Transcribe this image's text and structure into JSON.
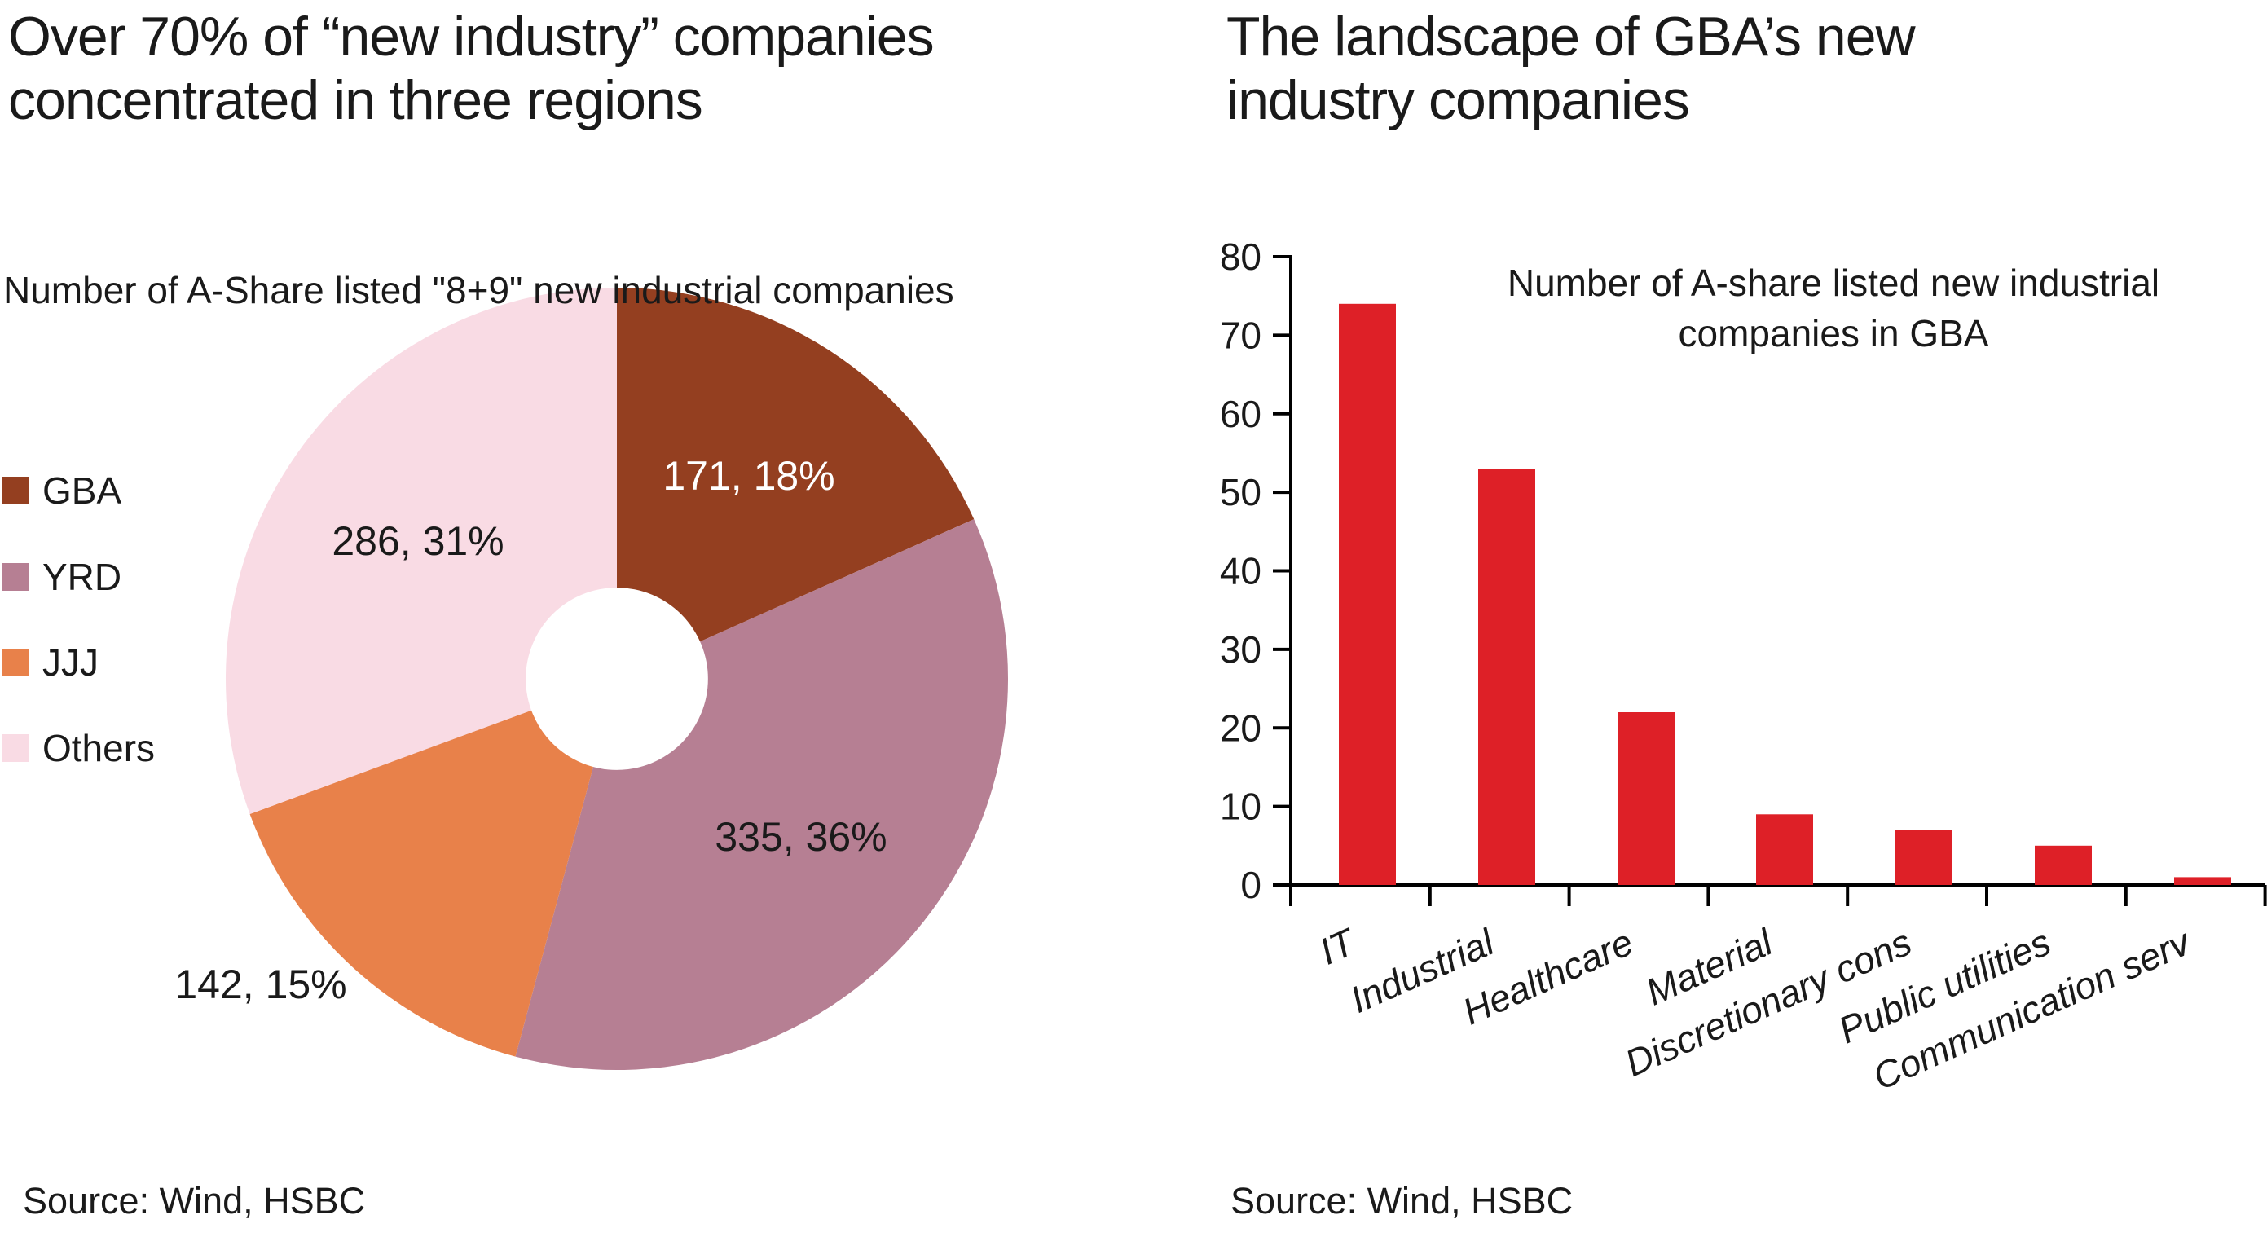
{
  "panels": {
    "left": {
      "title_lines": [
        "Over 70% of “new industry” companies",
        "concentrated in three regions"
      ],
      "subtitle": "Number of A-Share listed \"8+9\" new industrial companies",
      "source": "Source: Wind, HSBC"
    },
    "right": {
      "title_lines": [
        "The landscape of GBA’s new",
        "industry companies"
      ],
      "chart_title_lines": [
        "Number of A-share listed new industrial",
        "companies in GBA"
      ],
      "source": "Source: Wind, HSBC"
    }
  },
  "chart_data": [
    {
      "type": "pie",
      "title": "Over 70% of “new industry” companies concentrated in three regions",
      "subtitle": "Number of A-Share listed \"8+9\" new industrial companies",
      "categories": [
        "GBA",
        "YRD",
        "JJJ",
        "Others"
      ],
      "values": [
        171,
        335,
        142,
        286
      ],
      "labels": [
        "171, 18%",
        "335, 36%",
        "142, 15%",
        "286, 31%"
      ],
      "colors": [
        "#943F20",
        "#B67F93",
        "#E8814A",
        "#F9DBE4"
      ],
      "label_colors": [
        "#ffffff",
        "#1a1a1a",
        "#1a1a1a",
        "#1a1a1a"
      ],
      "label_placement": [
        "inside",
        "inside",
        "outside",
        "inside"
      ],
      "donut_hole_ratio": 0.233,
      "start_angle_deg": 0,
      "direction": "clockwise",
      "legend_position": "left",
      "source": "Source: Wind, HSBC"
    },
    {
      "type": "bar",
      "title": "The landscape of GBA’s new industry companies",
      "chart_title": "Number of A-share listed new industrial companies in GBA",
      "categories": [
        "IT",
        "Industrial",
        "Healthcare",
        "Material",
        "Discretionary cons",
        "Public utilities",
        "Communication serv"
      ],
      "values": [
        74,
        53,
        22,
        9,
        7,
        5,
        1
      ],
      "bar_color": "#DE2027",
      "axis_color": "#000000",
      "ylim": [
        0,
        80
      ],
      "ytick_step": 10,
      "yticks": [
        "0",
        "10",
        "20",
        "30",
        "40",
        "50",
        "60",
        "70",
        "80"
      ],
      "xlabel_rotation_deg": -24,
      "grid": false,
      "source": "Source: Wind, HSBC"
    }
  ]
}
